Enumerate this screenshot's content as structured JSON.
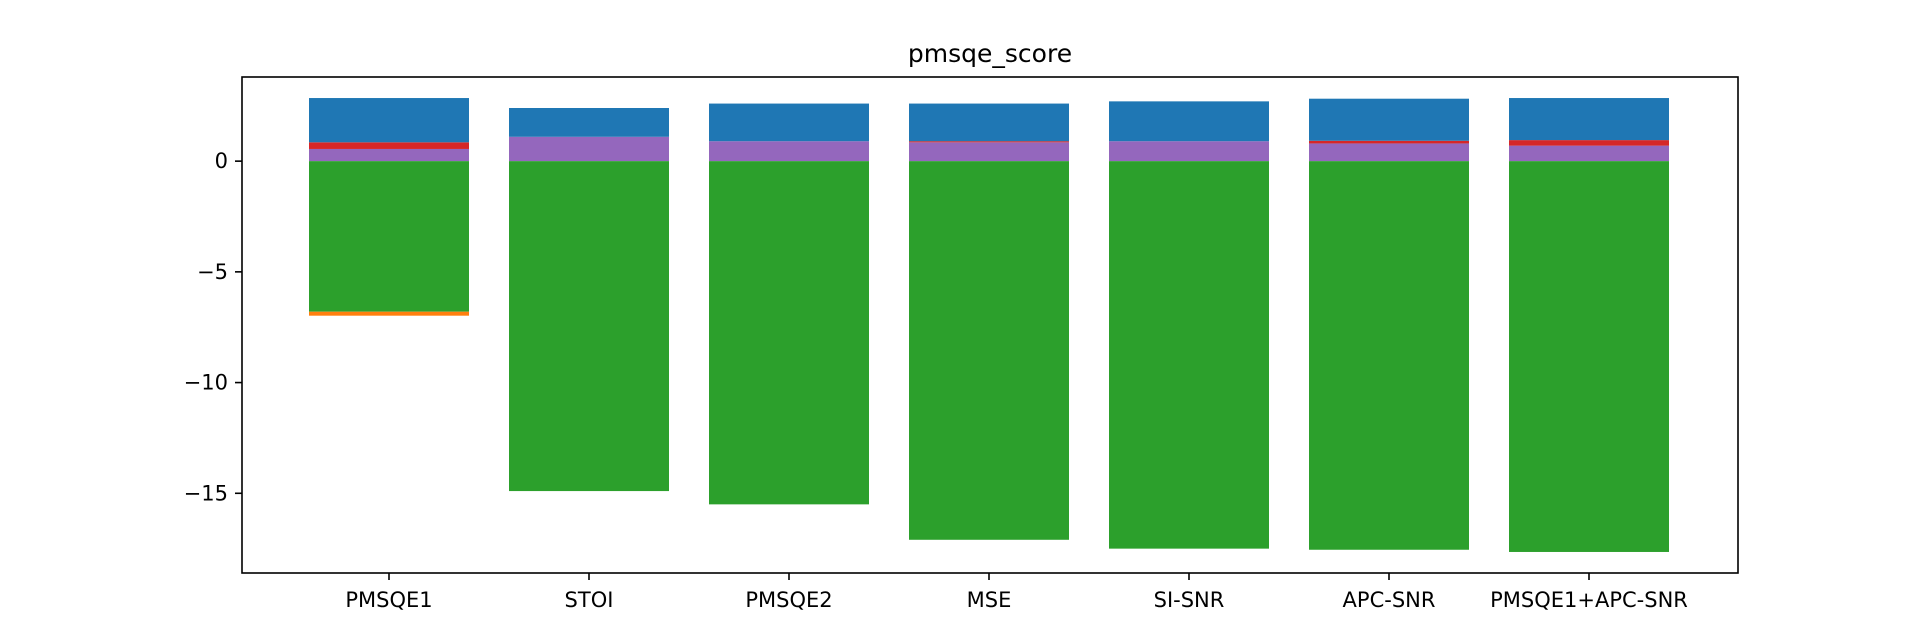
{
  "chart_data": {
    "type": "bar",
    "stacked": true,
    "title": "pmsqe_score",
    "xlabel": "",
    "ylabel": "",
    "categories": [
      "PMSQE1",
      "STOI",
      "PMSQE2",
      "MSE",
      "SI-SNR",
      "APC-SNR",
      "PMSQE1+APC-SNR"
    ],
    "ylim": [
      -18.6,
      3.8
    ],
    "yticks": [
      0,
      -5,
      -10,
      -15
    ],
    "ytick_labels": [
      "0",
      "−5",
      "−10",
      "−15"
    ],
    "grid": false,
    "legend": "none",
    "series": [
      {
        "color": "#9467bd",
        "values": [
          0.55,
          1.1,
          0.9,
          0.85,
          0.9,
          0.8,
          0.7
        ]
      },
      {
        "color": "#d62728",
        "values": [
          0.3,
          0.0,
          0.0,
          0.05,
          0.0,
          0.12,
          0.25
        ]
      },
      {
        "color": "#1f77b4",
        "values": [
          2.0,
          1.3,
          1.7,
          1.7,
          1.8,
          1.9,
          1.9
        ]
      },
      {
        "color": "#2ca02c",
        "values": [
          -6.8,
          -14.9,
          -15.5,
          -17.1,
          -17.5,
          -17.55,
          -17.65
        ]
      },
      {
        "color": "#ff7f0e",
        "values": [
          -0.18,
          0.0,
          0.0,
          0.0,
          0.0,
          0.0,
          0.0
        ]
      }
    ]
  }
}
